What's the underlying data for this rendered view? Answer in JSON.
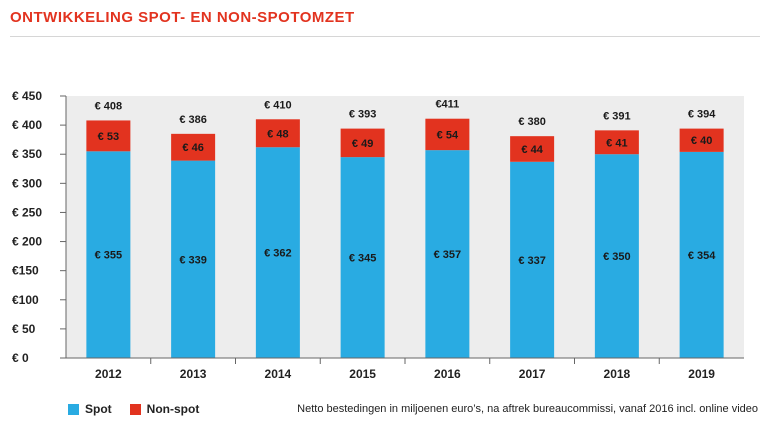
{
  "title": "ONTWIKKELING SPOT- EN NON-SPOTOMZET",
  "note": "Netto bestedingen in miljoenen euro’s, na aftrek bureaucommissi, vanaf 2016 incl. online video",
  "legend": [
    {
      "label": "Spot",
      "color": "#29abe2"
    },
    {
      "label": "Non-spot",
      "color": "#e2331f"
    }
  ],
  "chart_data": {
    "type": "bar",
    "stacked": true,
    "categories": [
      "2012",
      "2013",
      "2014",
      "2015",
      "2016",
      "2017",
      "2018",
      "2019"
    ],
    "series": [
      {
        "name": "Spot",
        "color": "#29abe2",
        "values": [
          355,
          339,
          362,
          345,
          357,
          337,
          350,
          354
        ],
        "labels": [
          "€ 355",
          "€ 339",
          "€ 362",
          "€ 345",
          "€ 357",
          "€ 337",
          "€ 350",
          "€ 354"
        ]
      },
      {
        "name": "Non-spot",
        "color": "#e2331f",
        "values": [
          53,
          46,
          48,
          49,
          54,
          44,
          41,
          40
        ],
        "labels": [
          "€ 53",
          "€ 46",
          "€ 48",
          "€ 49",
          "€ 54",
          "€ 44",
          "€ 41",
          "€ 40"
        ]
      }
    ],
    "totals": [
      408,
      386,
      410,
      393,
      411,
      380,
      391,
      394
    ],
    "total_labels": [
      "€ 408",
      "€ 386",
      "€ 410",
      "€ 393",
      "€411",
      "€ 380",
      "€ 391",
      "€ 394"
    ],
    "ylim": [
      0,
      450
    ],
    "yticks": [
      0,
      50,
      100,
      150,
      200,
      250,
      300,
      350,
      400,
      450
    ],
    "ytick_labels": [
      "€ 0",
      "€ 50",
      "€100",
      "€150",
      "€ 200",
      "€ 250",
      "€ 300",
      "€ 350",
      "€ 400",
      "€ 450"
    ],
    "plot_background": "#ededed"
  }
}
